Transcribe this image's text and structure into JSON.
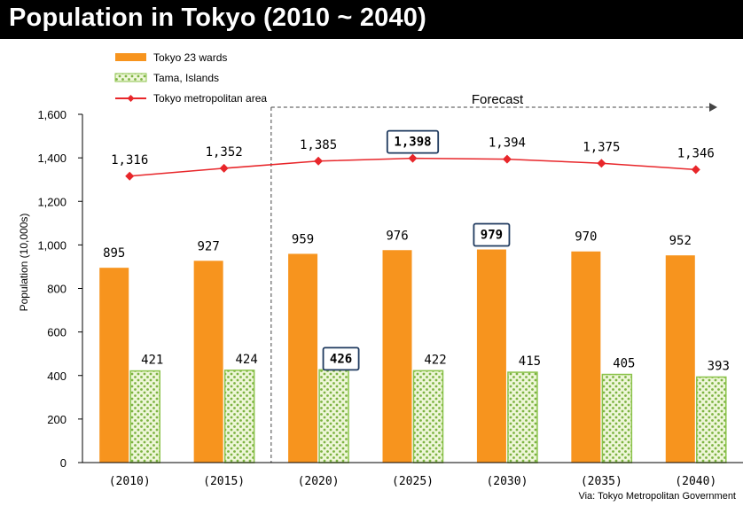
{
  "title": "Population in Tokyo (2010 ~ 2040)",
  "source": "Via: Tokyo Metropolitan Government",
  "colors": {
    "wards": "#F7941E",
    "tama_fill": "#EEF6D8",
    "tama_dots": "#7CB342",
    "tama_border": "#8BC34A",
    "metro": "#E8262A",
    "highlight": "#1F3A5F"
  },
  "chart_data": {
    "type": "bar",
    "title": "Population in Tokyo (2010 ~ 2040)",
    "xlabel": "",
    "ylabel": "Population (10,000s)",
    "ylim": [
      0,
      1600
    ],
    "yticks": [
      0,
      200,
      400,
      600,
      800,
      1000,
      1200,
      1400,
      1600
    ],
    "ytick_labels": [
      "0",
      "200",
      "400",
      "600",
      "800",
      "1,000",
      "1,200",
      "1,400",
      "1,600"
    ],
    "categories": [
      "(2010)",
      "(2015)",
      "(2020)",
      "(2025)",
      "(2030)",
      "(2035)",
      "(2040)"
    ],
    "series": [
      {
        "name": "Tokyo 23 wards",
        "kind": "bar",
        "values": [
          895,
          927,
          959,
          976,
          979,
          970,
          952
        ],
        "labels": [
          "895",
          "927",
          "959",
          "976",
          "979",
          "970",
          "952"
        ],
        "highlight_index": 4
      },
      {
        "name": "Tama, Islands",
        "kind": "bar",
        "values": [
          421,
          424,
          426,
          422,
          415,
          405,
          393
        ],
        "labels": [
          "421",
          "424",
          "426",
          "422",
          "415",
          "405",
          "393"
        ],
        "highlight_index": 2
      },
      {
        "name": "Tokyo metropolitan area",
        "kind": "line",
        "values": [
          1316,
          1352,
          1385,
          1398,
          1394,
          1375,
          1346
        ],
        "labels": [
          "1,316",
          "1,352",
          "1,385",
          "1,398",
          "1,394",
          "1,375",
          "1,346"
        ],
        "highlight_index": 3
      }
    ],
    "annotations": [
      {
        "text": "Forecast",
        "from_category": "(2020)",
        "to_category": "(2040)"
      }
    ],
    "legend_position": "top-left"
  }
}
